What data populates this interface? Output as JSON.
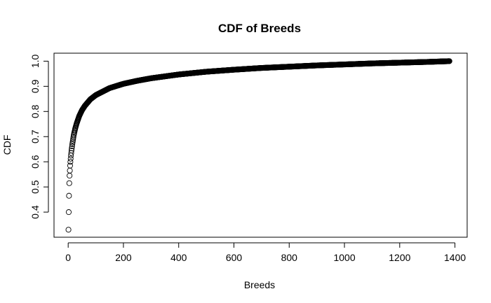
{
  "chart_data": {
    "type": "scatter",
    "title": "CDF of Breeds",
    "xlabel": "Breeds",
    "ylabel": "CDF",
    "xlim": [
      0,
      1380
    ],
    "ylim": [
      0.33,
      1.0
    ],
    "x_ticks": [
      0,
      200,
      400,
      600,
      800,
      1000,
      1200,
      1400
    ],
    "y_ticks": [
      0.4,
      0.5,
      0.6,
      0.7,
      0.8,
      0.9,
      1.0
    ],
    "x_tick_labels": [
      "0",
      "200",
      "400",
      "600",
      "800",
      "1000",
      "1200",
      "1400"
    ],
    "y_tick_labels": [
      "0.4",
      "0.5",
      "0.6",
      "0.7",
      "0.8",
      "0.9",
      "1.0"
    ],
    "grid": false,
    "legend": "none",
    "marker": "open-circle",
    "point_count": 1380,
    "series": [
      {
        "x": [
          1,
          2,
          3,
          4,
          5,
          6,
          7,
          8,
          10,
          12,
          15,
          20,
          25,
          30,
          40,
          50,
          60,
          80,
          100,
          150,
          200,
          250,
          300,
          400,
          500,
          600,
          700,
          800,
          900,
          1000,
          1100,
          1200,
          1300,
          1380
        ],
        "values": [
          0.33,
          0.4,
          0.465,
          0.515,
          0.545,
          0.565,
          0.585,
          0.6,
          0.625,
          0.645,
          0.67,
          0.705,
          0.73,
          0.75,
          0.782,
          0.805,
          0.822,
          0.848,
          0.865,
          0.893,
          0.91,
          0.922,
          0.932,
          0.947,
          0.958,
          0.966,
          0.973,
          0.978,
          0.983,
          0.987,
          0.991,
          0.994,
          0.997,
          1.0
        ]
      }
    ]
  }
}
